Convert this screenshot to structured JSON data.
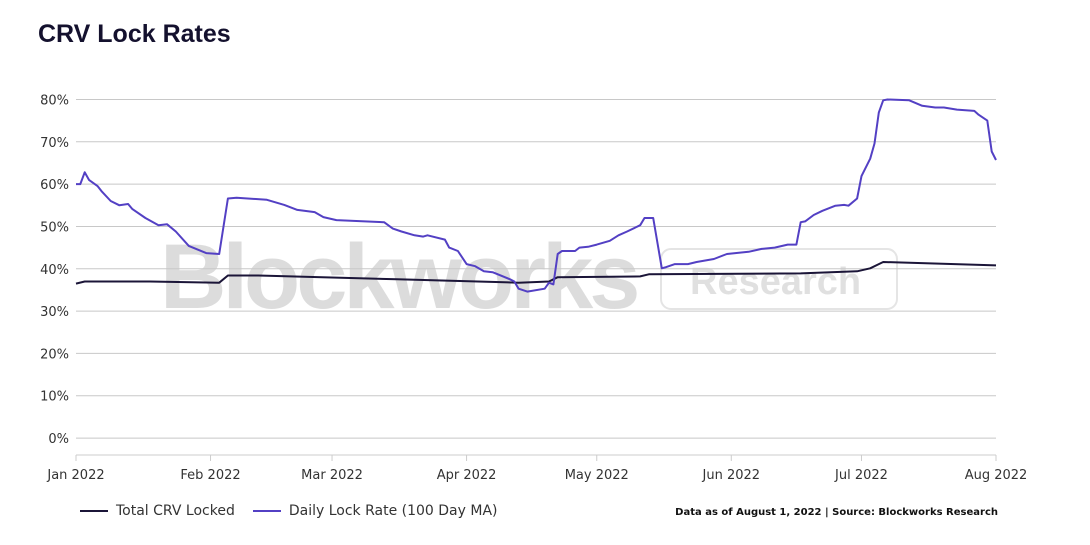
{
  "chart_data": {
    "type": "line",
    "title": "CRV Lock Rates",
    "source_note": "Data as of August 1, 2022 | Source: Blockworks Research",
    "watermark": "Blockworks Research",
    "xlim": [
      "2022-01-01",
      "2022-08-01"
    ],
    "ylim": [
      -4,
      82
    ],
    "grid": true,
    "legend_position": "bottom-left",
    "x_ticks": [
      {
        "date": "2022-01-01",
        "label": "Jan 2022"
      },
      {
        "date": "2022-02-01",
        "label": "Feb 2022"
      },
      {
        "date": "2022-03-01",
        "label": "Mar 2022"
      },
      {
        "date": "2022-04-01",
        "label": "Apr 2022"
      },
      {
        "date": "2022-05-01",
        "label": "May 2022"
      },
      {
        "date": "2022-06-01",
        "label": "Jun 2022"
      },
      {
        "date": "2022-07-01",
        "label": "Jul 2022"
      },
      {
        "date": "2022-08-01",
        "label": "Aug 2022"
      }
    ],
    "y_ticks": [
      {
        "value": 0,
        "label": "0%"
      },
      {
        "value": 10,
        "label": "10%"
      },
      {
        "value": 20,
        "label": "20%"
      },
      {
        "value": 30,
        "label": "30%"
      },
      {
        "value": 40,
        "label": "40%"
      },
      {
        "value": 50,
        "label": "50%"
      },
      {
        "value": 60,
        "label": "60%"
      },
      {
        "value": 70,
        "label": "70%"
      },
      {
        "value": 80,
        "label": "80%"
      }
    ],
    "series": [
      {
        "name": "Total CRV Locked",
        "color": "#1b1538",
        "points": [
          [
            "2022-01-01",
            36.5
          ],
          [
            "2022-01-03",
            37.0
          ],
          [
            "2022-01-18",
            37.0
          ],
          [
            "2022-02-03",
            36.7
          ],
          [
            "2022-02-05",
            38.4
          ],
          [
            "2022-02-12",
            38.4
          ],
          [
            "2022-03-16",
            37.5
          ],
          [
            "2022-04-13",
            36.7
          ],
          [
            "2022-04-20",
            37.0
          ],
          [
            "2022-04-22",
            38.0
          ],
          [
            "2022-05-11",
            38.2
          ],
          [
            "2022-05-13",
            38.7
          ],
          [
            "2022-06-17",
            38.9
          ],
          [
            "2022-06-30",
            39.4
          ],
          [
            "2022-07-03",
            40.1
          ],
          [
            "2022-07-05",
            41.1
          ],
          [
            "2022-07-06",
            41.6
          ],
          [
            "2022-08-01",
            40.8
          ]
        ]
      },
      {
        "name": "Daily Lock Rate (100 Day MA)",
        "color": "#5340c4",
        "points": [
          [
            "2022-01-01",
            60.0
          ],
          [
            "2022-01-02",
            60.0
          ],
          [
            "2022-01-03",
            62.8
          ],
          [
            "2022-01-04",
            61.0
          ],
          [
            "2022-01-06",
            59.5
          ],
          [
            "2022-01-07",
            58.2
          ],
          [
            "2022-01-09",
            56.0
          ],
          [
            "2022-01-11",
            55.0
          ],
          [
            "2022-01-13",
            55.3
          ],
          [
            "2022-01-14",
            54.1
          ],
          [
            "2022-01-17",
            52.0
          ],
          [
            "2022-01-20",
            50.3
          ],
          [
            "2022-01-22",
            50.5
          ],
          [
            "2022-01-24",
            48.8
          ],
          [
            "2022-01-27",
            45.4
          ],
          [
            "2022-01-31",
            43.7
          ],
          [
            "2022-02-03",
            43.5
          ],
          [
            "2022-02-05",
            56.6
          ],
          [
            "2022-02-07",
            56.8
          ],
          [
            "2022-02-14",
            56.3
          ],
          [
            "2022-02-18",
            55.1
          ],
          [
            "2022-02-21",
            53.9
          ],
          [
            "2022-02-25",
            53.4
          ],
          [
            "2022-02-27",
            52.2
          ],
          [
            "2022-03-02",
            51.5
          ],
          [
            "2022-03-13",
            51.0
          ],
          [
            "2022-03-15",
            49.5
          ],
          [
            "2022-03-17",
            48.8
          ],
          [
            "2022-03-20",
            47.9
          ],
          [
            "2022-03-22",
            47.6
          ],
          [
            "2022-03-23",
            47.9
          ],
          [
            "2022-03-27",
            46.9
          ],
          [
            "2022-03-28",
            45.0
          ],
          [
            "2022-03-30",
            44.2
          ],
          [
            "2022-04-01",
            41.1
          ],
          [
            "2022-04-03",
            40.6
          ],
          [
            "2022-04-05",
            39.4
          ],
          [
            "2022-04-07",
            39.2
          ],
          [
            "2022-04-11",
            37.5
          ],
          [
            "2022-04-12",
            37.0
          ],
          [
            "2022-04-13",
            35.3
          ],
          [
            "2022-04-15",
            34.6
          ],
          [
            "2022-04-19",
            35.3
          ],
          [
            "2022-04-20",
            36.7
          ],
          [
            "2022-04-21",
            36.3
          ],
          [
            "2022-04-22",
            43.5
          ],
          [
            "2022-04-23",
            44.2
          ],
          [
            "2022-04-26",
            44.2
          ],
          [
            "2022-04-27",
            45.0
          ],
          [
            "2022-04-29",
            45.2
          ],
          [
            "2022-05-01",
            45.7
          ],
          [
            "2022-05-04",
            46.6
          ],
          [
            "2022-05-06",
            47.9
          ],
          [
            "2022-05-08",
            48.8
          ],
          [
            "2022-05-11",
            50.3
          ],
          [
            "2022-05-12",
            52.0
          ],
          [
            "2022-05-14",
            52.0
          ],
          [
            "2022-05-16",
            40.1
          ],
          [
            "2022-05-17",
            40.4
          ],
          [
            "2022-05-19",
            41.1
          ],
          [
            "2022-05-22",
            41.1
          ],
          [
            "2022-05-24",
            41.6
          ],
          [
            "2022-05-28",
            42.3
          ],
          [
            "2022-05-31",
            43.5
          ],
          [
            "2022-06-05",
            44.0
          ],
          [
            "2022-06-08",
            44.7
          ],
          [
            "2022-06-11",
            45.0
          ],
          [
            "2022-06-14",
            45.7
          ],
          [
            "2022-06-16",
            45.7
          ],
          [
            "2022-06-17",
            51.0
          ],
          [
            "2022-06-18",
            51.2
          ],
          [
            "2022-06-20",
            52.7
          ],
          [
            "2022-06-22",
            53.7
          ],
          [
            "2022-06-25",
            54.9
          ],
          [
            "2022-06-27",
            55.1
          ],
          [
            "2022-06-28",
            54.9
          ],
          [
            "2022-06-30",
            56.6
          ],
          [
            "2022-07-01",
            61.9
          ],
          [
            "2022-07-03",
            66.0
          ],
          [
            "2022-07-04",
            69.6
          ],
          [
            "2022-07-05",
            76.9
          ],
          [
            "2022-07-06",
            79.8
          ],
          [
            "2022-07-07",
            80.0
          ],
          [
            "2022-07-12",
            79.8
          ],
          [
            "2022-07-15",
            78.5
          ],
          [
            "2022-07-18",
            78.1
          ],
          [
            "2022-07-20",
            78.1
          ],
          [
            "2022-07-23",
            77.6
          ],
          [
            "2022-07-27",
            77.3
          ],
          [
            "2022-07-28",
            76.4
          ],
          [
            "2022-07-30",
            75.0
          ],
          [
            "2022-07-31",
            67.7
          ],
          [
            "2022-08-01",
            65.7
          ]
        ]
      }
    ]
  }
}
